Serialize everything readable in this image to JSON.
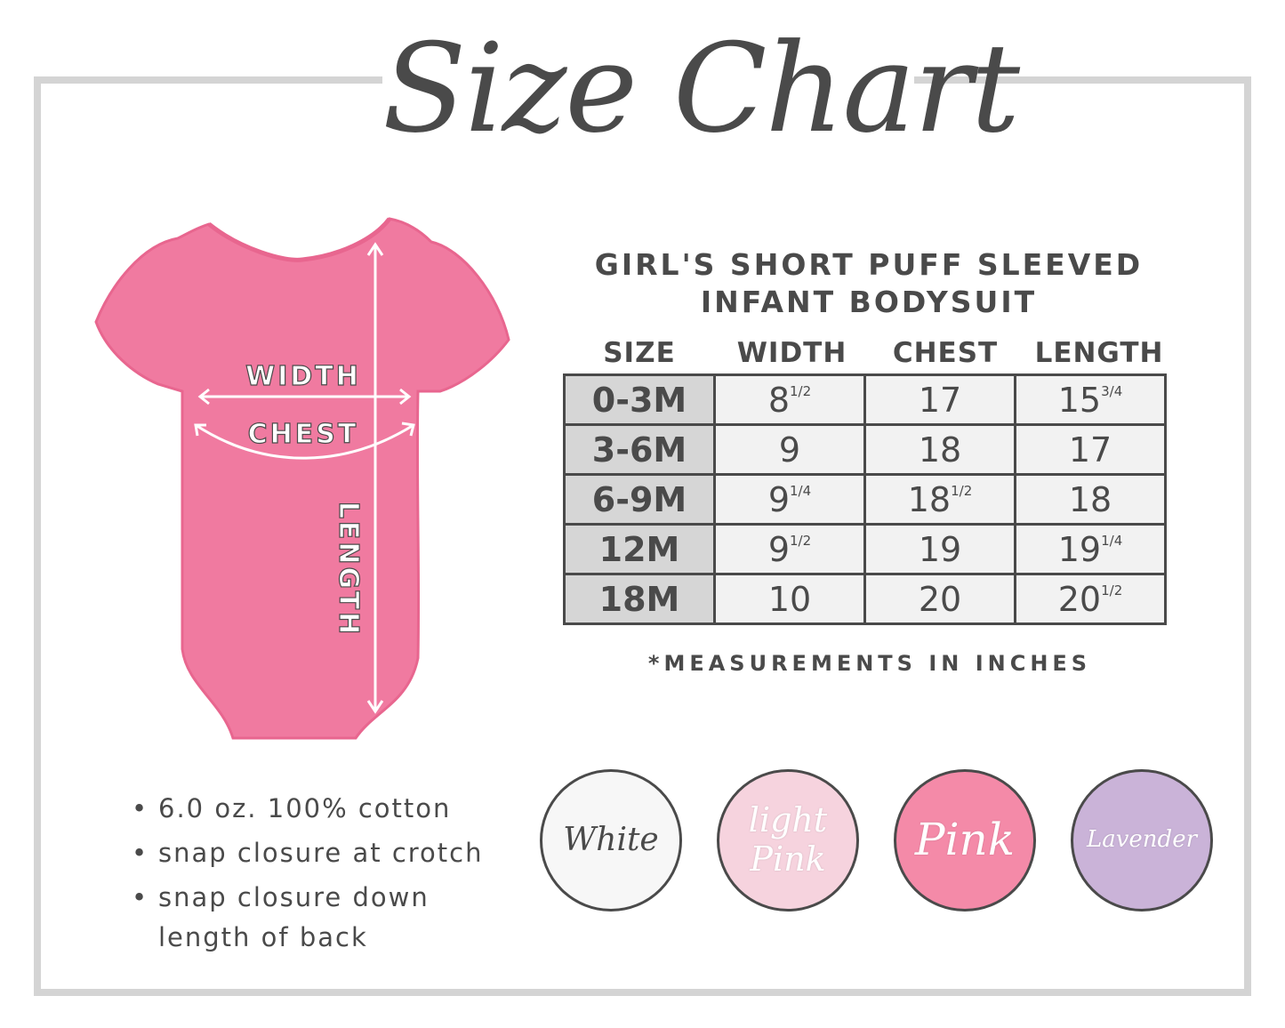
{
  "title": "Size Chart",
  "product_title": [
    "GIRL'S SHORT PUFF SLEEVED",
    "INFANT BODYSUIT"
  ],
  "diagram_labels": {
    "width": "WIDTH",
    "chest": "CHEST",
    "length": "LENGTH"
  },
  "colors": {
    "garment": "#f07aa0",
    "frame": "#d4d4d4",
    "text": "#4a4a4a"
  },
  "table": {
    "headers": [
      "SIZE",
      "WIDTH",
      "CHEST",
      "LENGTH"
    ],
    "rows": [
      {
        "size": "0-3M",
        "width": "8",
        "width_frac": "1/2",
        "chest": "17",
        "chest_frac": "",
        "length": "15",
        "length_frac": "3/4"
      },
      {
        "size": "3-6M",
        "width": "9",
        "width_frac": "",
        "chest": "18",
        "chest_frac": "",
        "length": "17",
        "length_frac": ""
      },
      {
        "size": "6-9M",
        "width": "9",
        "width_frac": "1/4",
        "chest": "18",
        "chest_frac": "1/2",
        "length": "18",
        "length_frac": ""
      },
      {
        "size": "12M",
        "width": "9",
        "width_frac": "1/2",
        "chest": "19",
        "chest_frac": "",
        "length": "19",
        "length_frac": "1/4"
      },
      {
        "size": "18M",
        "width": "10",
        "width_frac": "",
        "chest": "20",
        "chest_frac": "",
        "length": "20",
        "length_frac": "1/2"
      }
    ],
    "note": "*MEASUREMENTS IN INCHES"
  },
  "features": [
    "6.0 oz. 100% cotton",
    "snap closure at crotch",
    "snap closure down",
    "length of back"
  ],
  "swatches": [
    {
      "label": "White",
      "color": "#f7f7f7",
      "text_color": "#4a4a4a"
    },
    {
      "label": "light Pink",
      "color": "#f6d3de",
      "text_color": "#ffffff"
    },
    {
      "label": "Pink",
      "color": "#f48aa8",
      "text_color": "#ffffff"
    },
    {
      "label": "Lavender",
      "color": "#cab3d8",
      "text_color": "#ffffff"
    }
  ]
}
